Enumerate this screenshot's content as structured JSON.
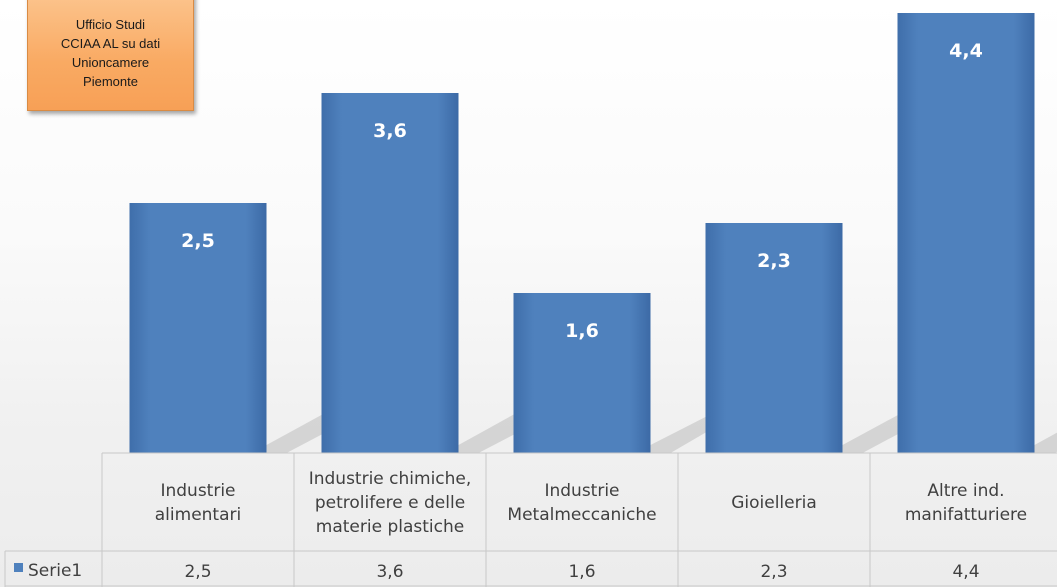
{
  "source_note": "Ufficio Studi\nCCIAA AL su dati\nUnioncamere\nPiemonte",
  "colors": {
    "bar": "#4f81bd",
    "bar_dark": "#3c6aa6",
    "label": "#ffffff",
    "grid": "#c8c8c8",
    "text": "#404040"
  },
  "chart_data": {
    "type": "bar",
    "categories": [
      "Industrie\nalimentari",
      "Industrie chimiche,\npetrolifere e delle\nmaterie plastiche",
      "Industrie\nMetalmeccaniche",
      "Gioielleria",
      "Altre ind.\nmanifatturiere"
    ],
    "series": [
      {
        "name": "Serie1",
        "values": [
          2.5,
          3.6,
          1.6,
          2.3,
          4.4
        ],
        "labels": [
          "2,5",
          "3,6",
          "1,6",
          "2,3",
          "4,4"
        ]
      }
    ],
    "title": "",
    "xlabel": "",
    "ylabel": "",
    "ylim": [
      0,
      4.4
    ],
    "grid": false,
    "data_table": true,
    "legend": "data-table"
  }
}
